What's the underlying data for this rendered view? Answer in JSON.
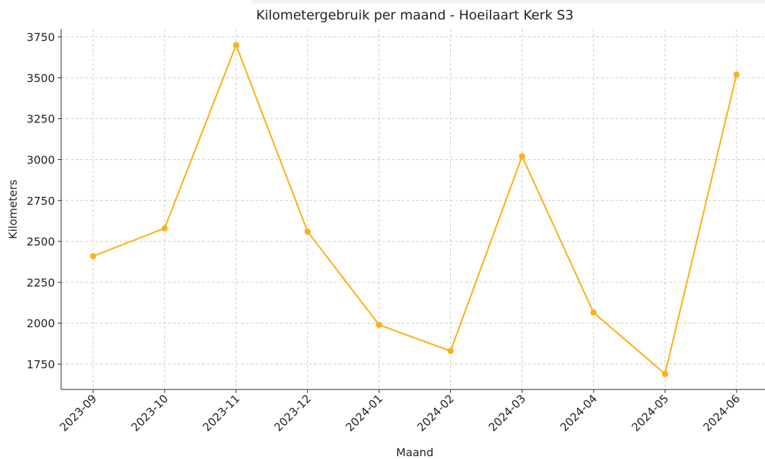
{
  "chart_data": {
    "type": "line",
    "title": "Kilometergebruik per maand - Hoeilaart Kerk S3",
    "x_label": "Maand",
    "y_label": "Kilometers",
    "categories": [
      "2023-09",
      "2023-10",
      "2023-11",
      "2023-12",
      "2024-01",
      "2024-02",
      "2024-03",
      "2024-04",
      "2024-05",
      "2024-06"
    ],
    "series": [
      {
        "name": "Kilometers",
        "color": "#fbb11a",
        "values": [
          2410,
          2580,
          3700,
          2560,
          1990,
          1830,
          3020,
          2065,
          1690,
          3520
        ]
      }
    ],
    "ylim": [
      1595,
      3797
    ],
    "yticks": [
      1750,
      2000,
      2250,
      2500,
      2750,
      3000,
      3250,
      3500,
      3750
    ],
    "grid": true
  }
}
